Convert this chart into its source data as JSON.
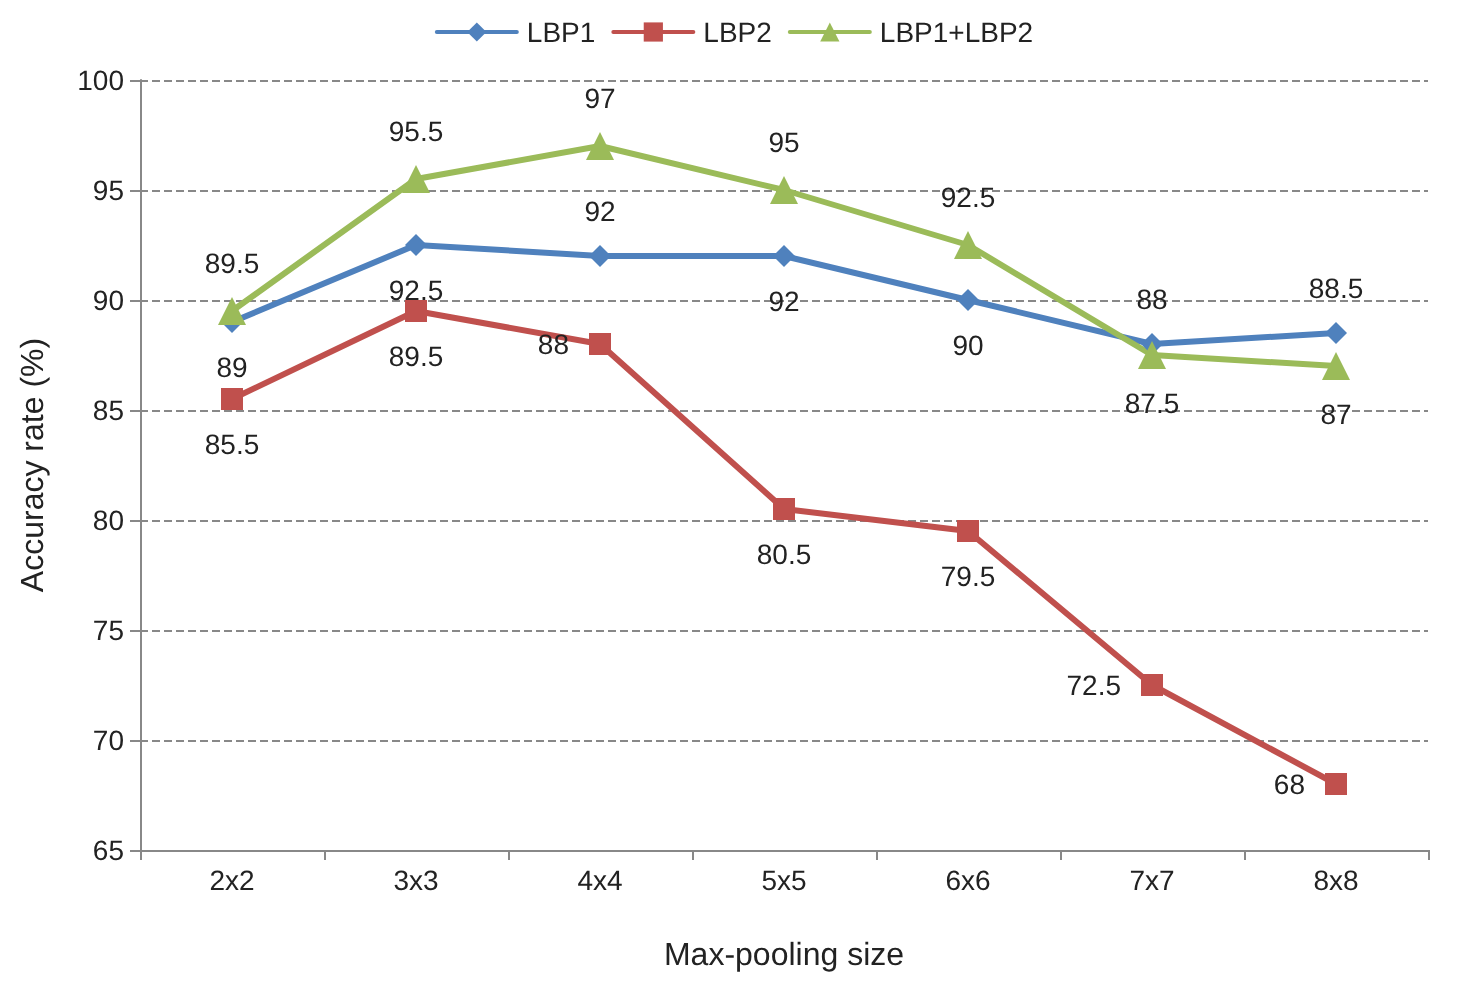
{
  "chart_data": {
    "type": "line",
    "xlabel": "Max-pooling size",
    "ylabel": "Accuracy rate (%)",
    "categories": [
      "2x2",
      "3x3",
      "4x4",
      "5x5",
      "6x6",
      "7x7",
      "8x8"
    ],
    "series": [
      {
        "name": "LBP1",
        "color": "#4f81bd",
        "marker": "diamond",
        "values": [
          89,
          92.5,
          92,
          92,
          90,
          88,
          88.5
        ]
      },
      {
        "name": "LBP2",
        "color": "#c0504d",
        "marker": "square",
        "values": [
          85.5,
          89.5,
          88,
          80.5,
          79.5,
          72.5,
          68
        ]
      },
      {
        "name": "LBP1+LBP2",
        "color": "#9bbb59",
        "marker": "triangle",
        "values": [
          89.5,
          95.5,
          97,
          95,
          92.5,
          87.5,
          87
        ]
      }
    ],
    "ylim": [
      65,
      100
    ],
    "yticks": [
      65,
      70,
      75,
      80,
      85,
      90,
      95,
      100
    ],
    "grid": "y",
    "legend": "top",
    "data_labels": true,
    "line_style": "solid"
  }
}
